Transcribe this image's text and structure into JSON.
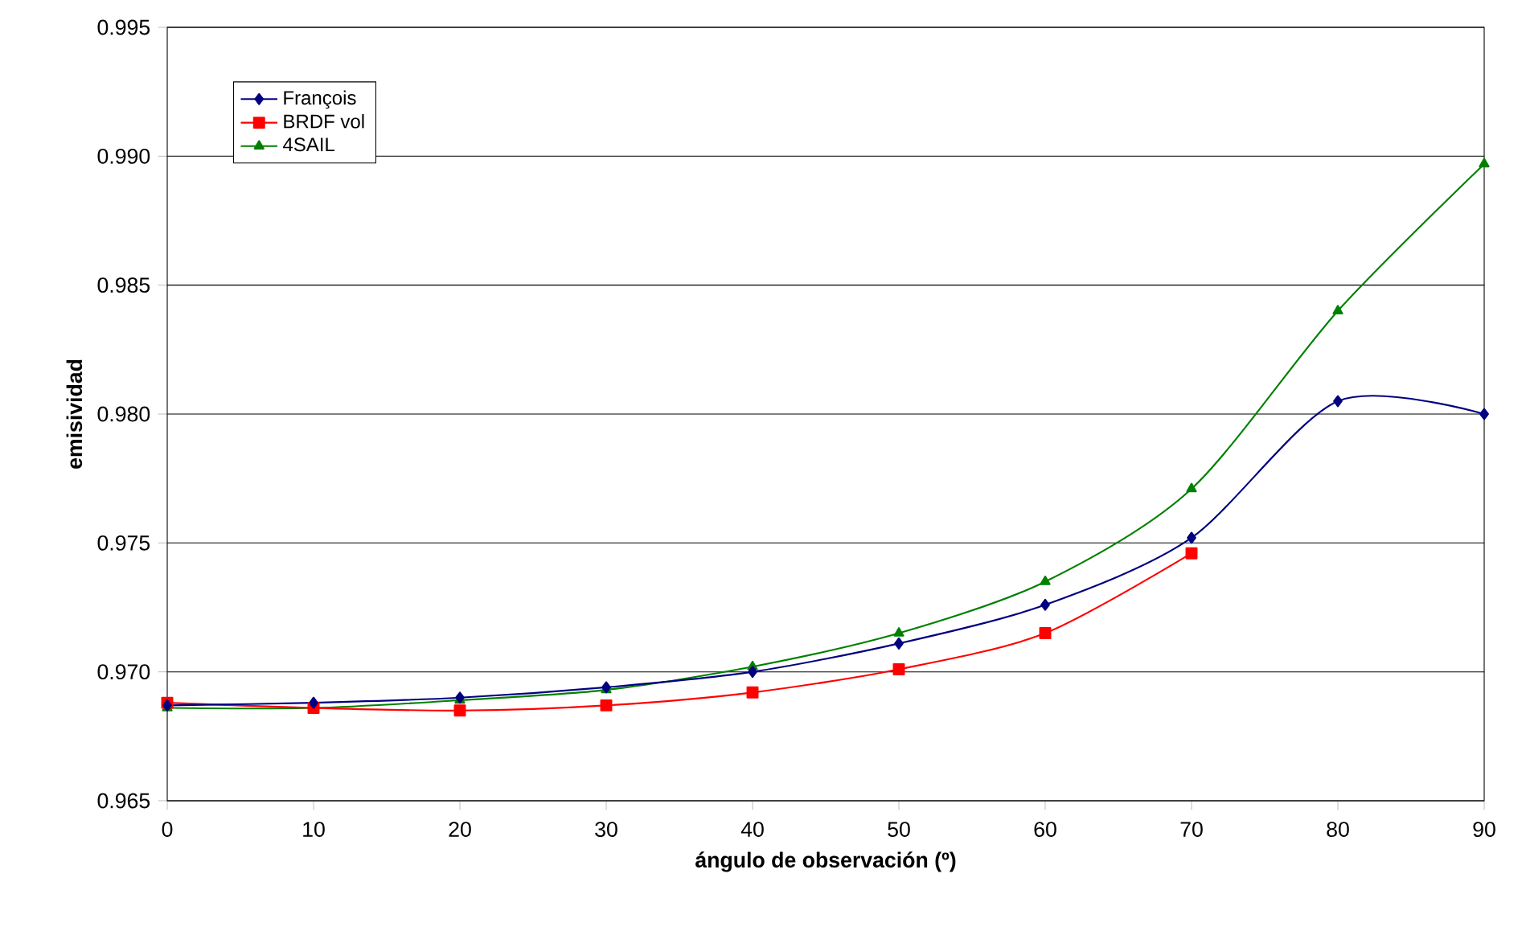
{
  "chart_data": {
    "type": "line",
    "xlabel": "ángulo de observación (º)",
    "ylabel": "emisividad",
    "x": [
      0,
      10,
      20,
      30,
      40,
      50,
      60,
      70,
      80,
      90
    ],
    "series": [
      {
        "name": "François",
        "color": "#000080",
        "marker": "diamond",
        "values": [
          0.9687,
          0.9688,
          0.969,
          0.9694,
          0.97,
          0.9711,
          0.9726,
          0.9752,
          0.9805,
          0.98
        ]
      },
      {
        "name": "BRDF vol",
        "color": "#ff0000",
        "marker": "square",
        "values": [
          0.9688,
          0.9686,
          0.9685,
          0.9687,
          0.9692,
          0.9701,
          0.9715,
          0.9746,
          null,
          null
        ]
      },
      {
        "name": "4SAIL",
        "color": "#008000",
        "marker": "triangle",
        "values": [
          0.9686,
          0.9686,
          0.9689,
          0.9693,
          0.9702,
          0.9715,
          0.9735,
          0.9771,
          0.984,
          0.9897
        ]
      }
    ],
    "xlim": [
      0,
      90
    ],
    "xticks": [
      0,
      10,
      20,
      30,
      40,
      50,
      60,
      70,
      80,
      90
    ],
    "ylim": [
      0.965,
      0.995
    ],
    "yticks": [
      {
        "value": 0.965,
        "label": "0.965"
      },
      {
        "value": 0.97,
        "label": "0.970"
      },
      {
        "value": 0.975,
        "label": "0.975"
      },
      {
        "value": 0.98,
        "label": "0.980"
      },
      {
        "value": 0.985,
        "label": "0.985"
      },
      {
        "value": 0.99,
        "label": "0.990"
      },
      {
        "value": 0.995,
        "label": "0.995"
      }
    ],
    "grid": "y",
    "legend": "top left"
  }
}
